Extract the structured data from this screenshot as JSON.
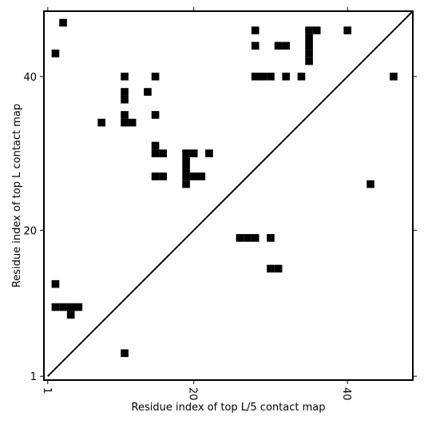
{
  "chart_data": {
    "type": "heatmap",
    "title": "",
    "xlabel": "Residue index of top L/5 contact map",
    "ylabel": "Residue index of top L contact map",
    "xlim": [
      0.5,
      48.5
    ],
    "ylim": [
      0.5,
      48.5
    ],
    "xticks": [
      {
        "value": 1,
        "label": "1"
      },
      {
        "value": 20,
        "label": "20"
      },
      {
        "value": 40,
        "label": "40"
      }
    ],
    "yticks": [
      {
        "value": 1,
        "label": "1"
      },
      {
        "value": 20,
        "label": "20"
      },
      {
        "value": 40,
        "label": "40"
      }
    ],
    "diagonal": true,
    "cell_color": "#000000",
    "points": [
      [
        3,
        47
      ],
      [
        28,
        46
      ],
      [
        35,
        45
      ],
      [
        35,
        46
      ],
      [
        36,
        46
      ],
      [
        40,
        46
      ],
      [
        2,
        43
      ],
      [
        28,
        44
      ],
      [
        31,
        44
      ],
      [
        32,
        44
      ],
      [
        35,
        42
      ],
      [
        35,
        43
      ],
      [
        35,
        44
      ],
      [
        11,
        40
      ],
      [
        15,
        40
      ],
      [
        28,
        40
      ],
      [
        29,
        40
      ],
      [
        30,
        40
      ],
      [
        32,
        40
      ],
      [
        34,
        40
      ],
      [
        46,
        40
      ],
      [
        14,
        38
      ],
      [
        11,
        38
      ],
      [
        11,
        37
      ],
      [
        15,
        35
      ],
      [
        11,
        35
      ],
      [
        11,
        34
      ],
      [
        12,
        34
      ],
      [
        8,
        34
      ],
      [
        15,
        31
      ],
      [
        15,
        30
      ],
      [
        16,
        30
      ],
      [
        19,
        30
      ],
      [
        20,
        30
      ],
      [
        19,
        29
      ],
      [
        19,
        28
      ],
      [
        22,
        30
      ],
      [
        15,
        27
      ],
      [
        16,
        27
      ],
      [
        19,
        27
      ],
      [
        20,
        27
      ],
      [
        21,
        27
      ],
      [
        19,
        26
      ],
      [
        43,
        26
      ],
      [
        26,
        19
      ],
      [
        27,
        19
      ],
      [
        28,
        19
      ],
      [
        30,
        19
      ],
      [
        30,
        15
      ],
      [
        31,
        15
      ],
      [
        2,
        13
      ],
      [
        2,
        10
      ],
      [
        3,
        10
      ],
      [
        4,
        10
      ],
      [
        5,
        10
      ],
      [
        4,
        9
      ],
      [
        11,
        4
      ]
    ]
  }
}
